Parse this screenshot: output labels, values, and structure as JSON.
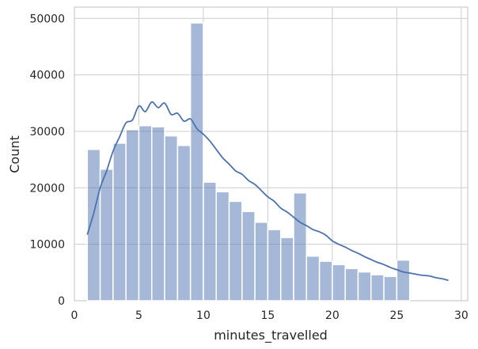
{
  "chart_data": {
    "type": "bar",
    "subtype": "histogram-with-kde",
    "title": "",
    "xlabel": "minutes_travelled",
    "ylabel": "Count",
    "xlim": [
      0.0,
      30.5
    ],
    "ylim": [
      0,
      52000
    ],
    "xticks": [
      0,
      5,
      10,
      15,
      20,
      25,
      30
    ],
    "yticks": [
      0,
      10000,
      20000,
      30000,
      40000,
      50000
    ],
    "grid": true,
    "bar_color": "#4c72b0",
    "bar_opacity": 0.5,
    "line_color": "#4c72b0",
    "bins": {
      "start": 1,
      "width": 1,
      "counts": [
        26800,
        23300,
        27900,
        30300,
        31000,
        30800,
        29200,
        27500,
        49200,
        21000,
        19300,
        17600,
        15800,
        13900,
        12600,
        11200,
        19100,
        7900,
        7000,
        6400,
        5700,
        5100,
        4600,
        4300,
        7200
      ]
    },
    "kde": {
      "x": [
        1.0,
        1.5,
        2.0,
        2.5,
        3.0,
        3.5,
        4.0,
        4.5,
        5.0,
        5.5,
        6.0,
        6.5,
        7.0,
        7.5,
        8.0,
        8.5,
        9.0,
        9.5,
        10.0,
        10.5,
        11.0,
        11.5,
        12.0,
        12.5,
        13.0,
        13.5,
        14.0,
        14.5,
        15.0,
        15.5,
        16.0,
        16.5,
        17.0,
        17.5,
        18.0,
        18.5,
        19.0,
        19.5,
        20.0,
        20.5,
        21.0,
        21.5,
        22.0,
        22.5,
        23.0,
        23.5,
        24.0,
        24.5,
        25.0,
        25.5,
        26.0,
        26.5,
        27.0,
        27.5,
        28.0,
        28.5,
        29.0
      ],
      "y": [
        11700,
        15500,
        20000,
        23000,
        26500,
        29000,
        31500,
        32000,
        34500,
        33500,
        35200,
        34200,
        35000,
        33000,
        33200,
        31800,
        32200,
        30500,
        29500,
        28300,
        26800,
        25300,
        24200,
        23000,
        22400,
        21300,
        20600,
        19500,
        18400,
        17600,
        16400,
        15700,
        14800,
        13900,
        13300,
        12600,
        12200,
        11600,
        10600,
        10000,
        9500,
        8900,
        8400,
        7800,
        7300,
        6800,
        6400,
        5900,
        5500,
        5100,
        4900,
        4700,
        4500,
        4400,
        4100,
        3900,
        3600
      ]
    }
  }
}
